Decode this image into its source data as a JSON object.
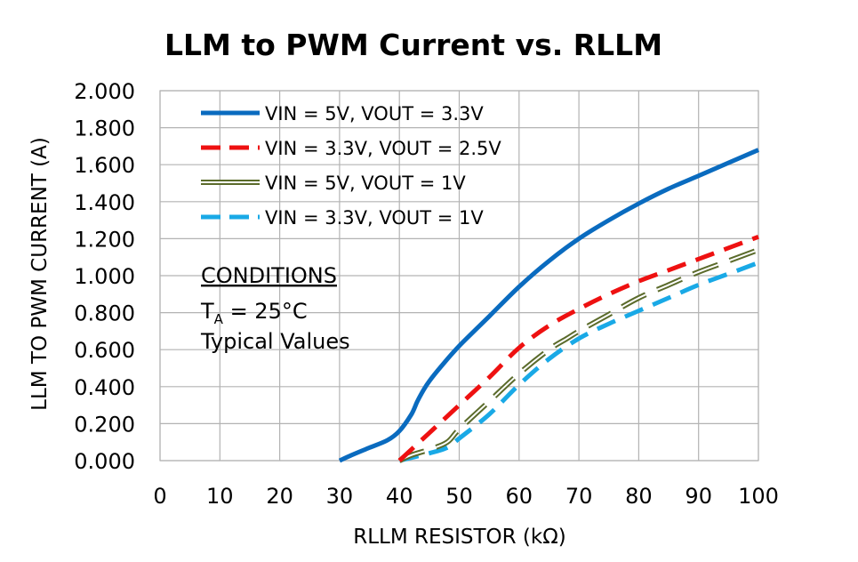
{
  "chart_data": {
    "type": "line",
    "title": "LLM to PWM Current vs. RLLM",
    "xlabel": "RLLM RESISTOR (kΩ)",
    "ylabel": "LLM TO PWM CURRENT (A)",
    "xlim": [
      0,
      100
    ],
    "ylim": [
      0,
      2
    ],
    "x_ticks": [
      "0",
      "10",
      "20",
      "30",
      "40",
      "50",
      "60",
      "70",
      "80",
      "90",
      "100"
    ],
    "y_ticks": [
      "0.000",
      "0.200",
      "0.400",
      "0.600",
      "0.800",
      "1.000",
      "1.200",
      "1.400",
      "1.600",
      "1.800",
      "2.000"
    ],
    "grid": true,
    "legend_position": "top-left",
    "series": [
      {
        "name": "VIN = 5V, VOUT = 3.3V",
        "color": "#0a6bbf",
        "style": "solid",
        "x": [
          30,
          32,
          35,
          38,
          40,
          42,
          43,
          44,
          45,
          47,
          50,
          55,
          60,
          65,
          70,
          75,
          80,
          85,
          90,
          95,
          100
        ],
        "y": [
          0.0,
          0.03,
          0.07,
          0.11,
          0.16,
          0.25,
          0.32,
          0.38,
          0.43,
          0.51,
          0.62,
          0.78,
          0.94,
          1.08,
          1.2,
          1.3,
          1.39,
          1.47,
          1.54,
          1.61,
          1.68
        ]
      },
      {
        "name": "VIN = 3.3V, VOUT = 2.5V",
        "color": "#ee1111",
        "style": "dashed",
        "x": [
          40,
          45,
          50,
          55,
          60,
          65,
          70,
          75,
          80,
          85,
          90,
          95,
          100
        ],
        "y": [
          0.0,
          0.15,
          0.3,
          0.45,
          0.61,
          0.73,
          0.82,
          0.9,
          0.97,
          1.03,
          1.09,
          1.15,
          1.21
        ]
      },
      {
        "name": "VIN = 5V, VOUT = 1V",
        "color": "#5b6b2b",
        "style": "double",
        "x": [
          40,
          42,
          45,
          48,
          50,
          55,
          60,
          65,
          68,
          70,
          75,
          80,
          85,
          90,
          95,
          100
        ],
        "y": [
          0.0,
          0.03,
          0.06,
          0.1,
          0.17,
          0.32,
          0.47,
          0.6,
          0.66,
          0.7,
          0.79,
          0.88,
          0.95,
          1.02,
          1.08,
          1.14
        ]
      },
      {
        "name": "VIN = 3.3V, VOUT = 1V",
        "color": "#19a9e6",
        "style": "dashed",
        "x": [
          40,
          45,
          48,
          50,
          55,
          60,
          65,
          70,
          75,
          80,
          85,
          90,
          95,
          100
        ],
        "y": [
          0.0,
          0.04,
          0.07,
          0.12,
          0.25,
          0.41,
          0.55,
          0.66,
          0.74,
          0.81,
          0.88,
          0.95,
          1.01,
          1.07
        ]
      }
    ],
    "annotations": {
      "conditions_title": "CONDITIONS",
      "ta_main": "T",
      "ta_sub": "A",
      "ta_value": " = 25°C",
      "typical": "Typical Values"
    }
  }
}
